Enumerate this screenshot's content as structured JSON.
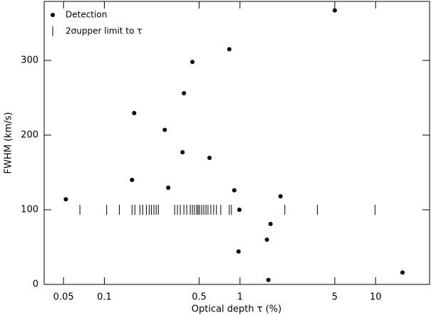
{
  "chart_data": {
    "type": "scatter",
    "x_label": "Optical depth τ  (%)",
    "y_label": "FWHM (km/s)",
    "xlog": true,
    "xlim": [
      0.036,
      25
    ],
    "ylim": [
      0,
      379
    ],
    "xticks": [
      0.05,
      0.1,
      0.5,
      1,
      5,
      10
    ],
    "yticks": [
      0,
      100,
      200,
      300
    ],
    "legend": "upper left",
    "series": [
      {
        "name": "Detection",
        "marker": "dot",
        "color": "#000000",
        "x": [
          0.052,
          0.16,
          0.166,
          0.279,
          0.296,
          0.377,
          0.386,
          0.446,
          0.596,
          0.834,
          0.908,
          0.99,
          0.976,
          1.58,
          1.68,
          1.62,
          1.99,
          5.0,
          15.8
        ],
        "values": [
          114,
          140,
          229.5,
          207,
          129.5,
          177,
          256,
          298,
          169.5,
          315,
          126,
          100,
          44,
          60,
          81,
          6,
          118,
          367,
          16
        ]
      },
      {
        "name": "2σupper limit to τ",
        "marker": "bar",
        "color": "#000000",
        "x": [
          0.066,
          0.104,
          0.129,
          0.16,
          0.168,
          0.183,
          0.192,
          0.204,
          0.214,
          0.222,
          0.232,
          0.241,
          0.25,
          0.33,
          0.346,
          0.363,
          0.386,
          0.405,
          0.43,
          0.446,
          0.462,
          0.48,
          0.491,
          0.503,
          0.522,
          0.541,
          0.561,
          0.581,
          0.61,
          0.64,
          0.671,
          0.722,
          0.834,
          0.865,
          2.14,
          3.72,
          9.9
        ],
        "values": [
          100,
          100,
          100,
          100,
          100,
          100,
          100,
          100,
          100,
          100,
          100,
          100,
          100,
          100,
          100,
          100,
          100,
          100,
          100,
          100,
          100,
          100,
          100,
          100,
          100,
          100,
          100,
          100,
          100,
          100,
          100,
          100,
          100,
          100,
          100,
          100,
          100
        ]
      }
    ]
  }
}
